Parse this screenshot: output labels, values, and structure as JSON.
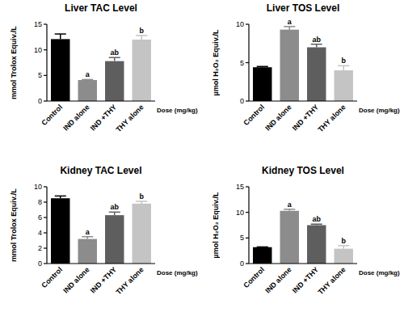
{
  "chart_data": [
    {
      "type": "bar",
      "title": "Liver TAC Level",
      "y_label": "mmol Trolox Equiv./L",
      "x_label": "Dose (mg/kg)",
      "categories": [
        "Control",
        "IND alone",
        "IND +THY",
        "THY alone"
      ],
      "values": [
        12.1,
        4.1,
        7.8,
        12.0
      ],
      "errors": [
        1.0,
        0.1,
        0.7,
        0.8
      ],
      "letters": [
        null,
        "a",
        "ab",
        "b"
      ],
      "colors": [
        "#000000",
        "#8c8c8c",
        "#5e5e5e",
        "#c4c4c4"
      ],
      "ylim": [
        0,
        15
      ],
      "yticks": [
        0,
        5,
        10,
        15
      ]
    },
    {
      "type": "bar",
      "title": "Liver TOS Level",
      "y_label": "µmol H₂O₂ Equiv./L",
      "x_label": "Dose (mg/kg)",
      "categories": [
        "Control",
        "IND alone",
        "IND +THY",
        "THY alone"
      ],
      "values": [
        4.4,
        9.3,
        7.0,
        4.0
      ],
      "errors": [
        0.1,
        0.4,
        0.4,
        0.6
      ],
      "letters": [
        null,
        "a",
        "ab",
        "b"
      ],
      "colors": [
        "#000000",
        "#8c8c8c",
        "#5e5e5e",
        "#c4c4c4"
      ],
      "ylim": [
        0,
        10
      ],
      "yticks": [
        0,
        5,
        10
      ]
    },
    {
      "type": "bar",
      "title": "Kidney TAC Level",
      "y_label": "mmol Trolox Equiv./L",
      "x_label": "Dose (mg/kg)",
      "categories": [
        "Control",
        "IND alone",
        "IND +THY",
        "THY alone"
      ],
      "values": [
        8.5,
        3.2,
        6.3,
        7.8
      ],
      "errors": [
        0.3,
        0.3,
        0.4,
        0.3
      ],
      "letters": [
        null,
        "a",
        "ab",
        "b"
      ],
      "colors": [
        "#000000",
        "#8c8c8c",
        "#5e5e5e",
        "#c4c4c4"
      ],
      "ylim": [
        0,
        10
      ],
      "yticks": [
        0,
        2,
        4,
        6,
        8,
        10
      ]
    },
    {
      "type": "bar",
      "title": "Kidney TOS Level",
      "y_label": "µmol H₂O₂ Equiv./L",
      "x_label": "Dose (mg/kg)",
      "categories": [
        "Control",
        "IND alone",
        "IND +THY",
        "THY alone"
      ],
      "values": [
        3.2,
        10.3,
        7.5,
        2.9
      ],
      "errors": [
        0.05,
        0.3,
        0.2,
        0.6
      ],
      "letters": [
        null,
        "a",
        "ab",
        "b"
      ],
      "colors": [
        "#000000",
        "#8c8c8c",
        "#5e5e5e",
        "#c4c4c4"
      ],
      "ylim": [
        0,
        15
      ],
      "yticks": [
        0,
        5,
        10,
        15
      ]
    }
  ]
}
